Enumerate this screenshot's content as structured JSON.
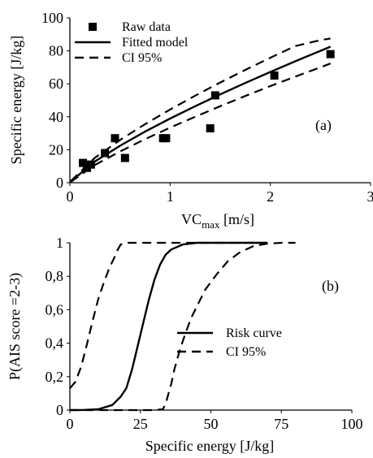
{
  "chart_data": [
    {
      "id": "a",
      "type": "scatter",
      "panel_label": "(a)",
      "xlabel": {
        "main": "VC",
        "sub": "max",
        "unit": " [m/s]"
      },
      "ylabel": "Specific energy [J/kg]",
      "xlim": [
        0,
        3
      ],
      "ylim": [
        0,
        100
      ],
      "xticks": [
        0,
        1,
        2,
        3
      ],
      "yticks": [
        0,
        20,
        40,
        60,
        80,
        100
      ],
      "grid": false,
      "legend_position": "top-left",
      "series": [
        {
          "name": "Raw data",
          "style": "square-marker",
          "points": [
            [
              0.13,
              12
            ],
            [
              0.17,
              9
            ],
            [
              0.21,
              11
            ],
            [
              0.35,
              18
            ],
            [
              0.45,
              27
            ],
            [
              0.55,
              15
            ],
            [
              0.93,
              27
            ],
            [
              0.96,
              27
            ],
            [
              1.4,
              33
            ],
            [
              1.45,
              53
            ],
            [
              2.04,
              65
            ],
            [
              2.6,
              78
            ]
          ]
        },
        {
          "name": "Fitted model",
          "style": "solid",
          "points": [
            [
              0.01,
              0.8
            ],
            [
              0.25,
              12.9
            ],
            [
              0.5,
              22.4
            ],
            [
              0.75,
              31.0
            ],
            [
              1.0,
              38.9
            ],
            [
              1.25,
              46.4
            ],
            [
              1.5,
              53.6
            ],
            [
              1.75,
              60.5
            ],
            [
              2.0,
              67.2
            ],
            [
              2.25,
              73.7
            ],
            [
              2.5,
              80.0
            ],
            [
              2.6,
              82.5
            ]
          ]
        },
        {
          "name": "CI 95%",
          "style": "dashed",
          "points": [
            [
              0.01,
              1.1
            ],
            [
              0.25,
              15.1
            ],
            [
              0.5,
              25.9
            ],
            [
              0.75,
              35.5
            ],
            [
              1.0,
              44.4
            ],
            [
              1.25,
              52.8
            ],
            [
              1.5,
              60.8
            ],
            [
              1.75,
              68.4
            ],
            [
              2.0,
              75.8
            ],
            [
              2.25,
              82.9
            ],
            [
              2.5,
              86.5
            ],
            [
              2.6,
              87.5
            ]
          ]
        },
        {
          "name": "",
          "style": "dashed",
          "points": [
            [
              0.01,
              0.5
            ],
            [
              0.25,
              10.8
            ],
            [
              0.5,
              18.9
            ],
            [
              0.75,
              26.4
            ],
            [
              1.0,
              33.4
            ],
            [
              1.25,
              40.0
            ],
            [
              1.5,
              46.4
            ],
            [
              1.75,
              52.6
            ],
            [
              2.0,
              58.6
            ],
            [
              2.25,
              64.4
            ],
            [
              2.5,
              70.0
            ],
            [
              2.6,
              72.3
            ]
          ]
        }
      ]
    },
    {
      "id": "b",
      "type": "line",
      "panel_label": "(b)",
      "xlabel": "Specific energy [J/kg]",
      "ylabel": "P(AIS score =2-3)",
      "xlim": [
        0,
        100
      ],
      "ylim": [
        0,
        1
      ],
      "xticks": [
        0,
        25,
        50,
        75,
        100
      ],
      "xtick_labels": [
        "0",
        "25",
        "50",
        "75",
        "100"
      ],
      "yticks": [
        0,
        0.2,
        0.4,
        0.6,
        0.8,
        1
      ],
      "ytick_labels": [
        "0",
        "0,2",
        "0,4",
        "0,6",
        "0,8",
        "1"
      ],
      "grid": false,
      "legend_position": "center-right",
      "series": [
        {
          "name": "Risk curve",
          "style": "solid",
          "points": [
            [
              0,
              0.0
            ],
            [
              5,
              0.001
            ],
            [
              10,
              0.005
            ],
            [
              15,
              0.03
            ],
            [
              18,
              0.08
            ],
            [
              20,
              0.13
            ],
            [
              22,
              0.24
            ],
            [
              24,
              0.38
            ],
            [
              26,
              0.52
            ],
            [
              28,
              0.66
            ],
            [
              30,
              0.78
            ],
            [
              32,
              0.87
            ],
            [
              34,
              0.93
            ],
            [
              36,
              0.96
            ],
            [
              40,
              0.99
            ],
            [
              45,
              1.0
            ],
            [
              70,
              1.0
            ]
          ]
        },
        {
          "name": "CI 95%",
          "style": "dashed",
          "points": [
            [
              0,
              0.13
            ],
            [
              2,
              0.17
            ],
            [
              4,
              0.26
            ],
            [
              6,
              0.39
            ],
            [
              8,
              0.53
            ],
            [
              10,
              0.66
            ],
            [
              12,
              0.76
            ],
            [
              14,
              0.85
            ],
            [
              16,
              0.92
            ],
            [
              17,
              0.96
            ],
            [
              18,
              0.99
            ],
            [
              20,
              1.0
            ],
            [
              24,
              1.0
            ],
            [
              70,
              1.0
            ]
          ]
        },
        {
          "name": "",
          "style": "dashed",
          "points": [
            [
              0,
              0.0
            ],
            [
              30,
              0.0
            ],
            [
              33,
              0.005
            ],
            [
              34,
              0.04
            ],
            [
              35,
              0.1
            ],
            [
              36,
              0.16
            ],
            [
              37,
              0.24
            ],
            [
              39,
              0.36
            ],
            [
              41,
              0.46
            ],
            [
              43,
              0.55
            ],
            [
              45,
              0.62
            ],
            [
              48,
              0.72
            ],
            [
              52,
              0.81
            ],
            [
              56,
              0.89
            ],
            [
              60,
              0.94
            ],
            [
              65,
              0.98
            ],
            [
              70,
              0.995
            ],
            [
              75,
              1.0
            ],
            [
              80,
              1.0
            ]
          ]
        }
      ]
    }
  ]
}
